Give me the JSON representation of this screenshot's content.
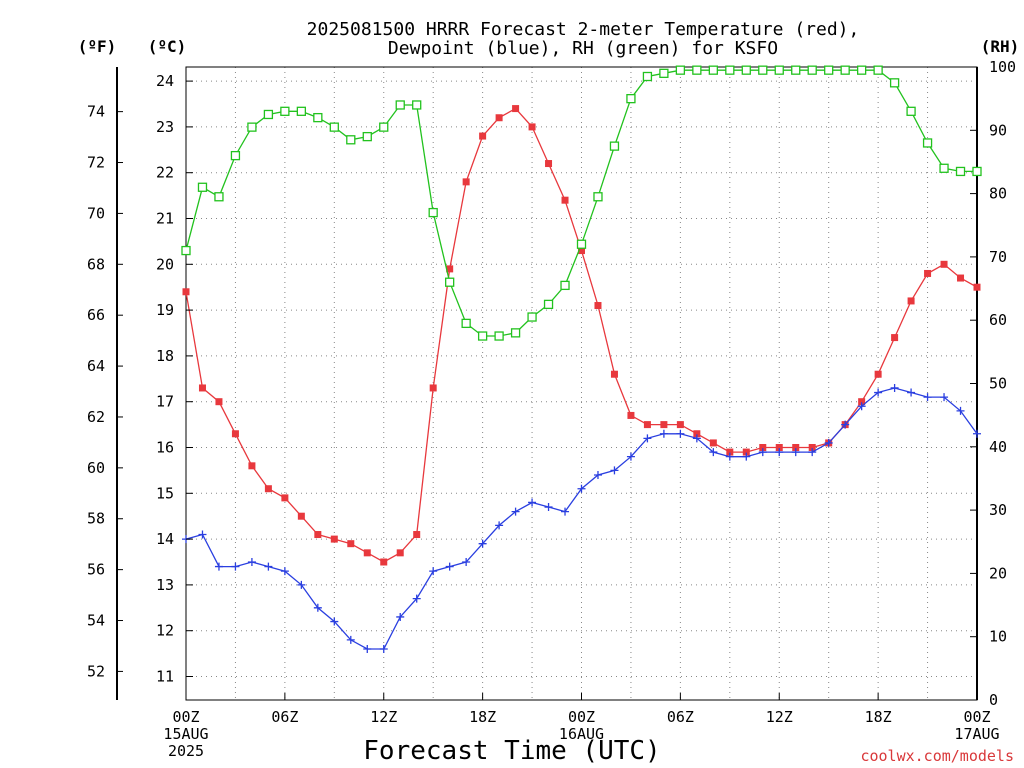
{
  "chart_data": {
    "type": "line",
    "title_line1": "2025081500 HRRR Forecast 2-meter Temperature (red),",
    "title_line2": "Dewpoint (blue), RH (green) for KSFO",
    "xlabel": "Forecast Time (UTC)",
    "left_outer_axis_label": "(ºF)",
    "left_inner_axis_label": "(ºC)",
    "right_axis_label": "(RH)",
    "credit": "coolwx.com/models",
    "x_range_hours": [
      0,
      48
    ],
    "celsius_range": [
      10.5,
      24.3
    ],
    "fahrenheit_ticks": [
      "52",
      "54",
      "56",
      "58",
      "60",
      "62",
      "64",
      "66",
      "68",
      "70",
      "72",
      "74"
    ],
    "celsius_ticks": [
      "11",
      "12",
      "13",
      "14",
      "15",
      "16",
      "17",
      "18",
      "19",
      "20",
      "21",
      "22",
      "23",
      "24"
    ],
    "rh_range": [
      0,
      100
    ],
    "rh_ticks": [
      "0",
      "10",
      "20",
      "30",
      "40",
      "50",
      "60",
      "70",
      "80",
      "90",
      "100"
    ],
    "x_ticks": [
      {
        "hour": 0,
        "lines": [
          "00Z",
          "15AUG",
          "2025"
        ]
      },
      {
        "hour": 6,
        "lines": [
          "06Z"
        ]
      },
      {
        "hour": 12,
        "lines": [
          "12Z"
        ]
      },
      {
        "hour": 18,
        "lines": [
          "18Z"
        ]
      },
      {
        "hour": 24,
        "lines": [
          "00Z",
          "16AUG"
        ]
      },
      {
        "hour": 30,
        "lines": [
          "06Z"
        ]
      },
      {
        "hour": 36,
        "lines": [
          "12Z"
        ]
      },
      {
        "hour": 42,
        "lines": [
          "18Z"
        ]
      },
      {
        "hour": 48,
        "lines": [
          "00Z",
          "17AUG"
        ]
      }
    ],
    "grid": true,
    "series": [
      {
        "name": "Temperature",
        "unit": "C",
        "color": "#e8383d",
        "marker": "filled-square",
        "x": [
          0,
          1,
          2,
          3,
          4,
          5,
          6,
          7,
          8,
          9,
          10,
          11,
          12,
          13,
          14,
          15,
          16,
          17,
          18,
          19,
          20,
          21,
          22,
          23,
          24,
          25,
          26,
          27,
          28,
          29,
          30,
          31,
          32,
          33,
          34,
          35,
          36,
          37,
          38,
          39,
          40,
          41,
          42,
          43,
          44,
          45,
          46,
          47,
          48
        ],
        "values": [
          19.4,
          17.3,
          17.0,
          16.3,
          15.6,
          15.1,
          14.9,
          14.5,
          14.1,
          14.0,
          13.9,
          13.7,
          13.5,
          13.7,
          14.1,
          17.3,
          19.9,
          21.8,
          22.8,
          23.2,
          23.4,
          23.0,
          22.2,
          21.4,
          20.3,
          19.1,
          17.6,
          16.7,
          16.5,
          16.5,
          16.5,
          16.3,
          16.1,
          15.9,
          15.9,
          16.0,
          16.0,
          16.0,
          16.0,
          16.1,
          16.5,
          17.0,
          17.6,
          18.4,
          19.2,
          19.8,
          20.0,
          19.7,
          19.5
        ]
      },
      {
        "name": "Dewpoint",
        "unit": "C",
        "color": "#2a3fe0",
        "marker": "plus",
        "x": [
          0,
          1,
          2,
          3,
          4,
          5,
          6,
          7,
          8,
          9,
          10,
          11,
          12,
          13,
          14,
          15,
          16,
          17,
          18,
          19,
          20,
          21,
          22,
          23,
          24,
          25,
          26,
          27,
          28,
          29,
          30,
          31,
          32,
          33,
          34,
          35,
          36,
          37,
          38,
          39,
          40,
          41,
          42,
          43,
          44,
          45,
          46,
          47,
          48
        ],
        "values": [
          14.0,
          14.1,
          13.4,
          13.4,
          13.5,
          13.4,
          13.3,
          13.0,
          12.5,
          12.2,
          11.8,
          11.6,
          11.6,
          12.3,
          12.7,
          13.3,
          13.4,
          13.5,
          13.9,
          14.3,
          14.6,
          14.8,
          14.7,
          14.6,
          15.1,
          15.4,
          15.5,
          15.8,
          16.2,
          16.3,
          16.3,
          16.2,
          15.9,
          15.8,
          15.8,
          15.9,
          15.9,
          15.9,
          15.9,
          16.1,
          16.5,
          16.9,
          17.2,
          17.3,
          17.2,
          17.1,
          17.1,
          16.8,
          16.3
        ]
      },
      {
        "name": "RH",
        "unit": "%",
        "color": "#22c21e",
        "marker": "open-square",
        "x": [
          0,
          1,
          2,
          3,
          4,
          5,
          6,
          7,
          8,
          9,
          10,
          11,
          12,
          13,
          14,
          15,
          16,
          17,
          18,
          19,
          20,
          21,
          22,
          23,
          24,
          25,
          26,
          27,
          28,
          29,
          30,
          31,
          32,
          33,
          34,
          35,
          36,
          37,
          38,
          39,
          40,
          41,
          42,
          43,
          44,
          45,
          46,
          47,
          48
        ],
        "values": [
          71,
          81,
          79.5,
          86,
          90.5,
          92.5,
          93,
          93,
          92,
          90.5,
          88.5,
          89,
          90.5,
          94,
          94,
          77,
          66,
          59.5,
          57.5,
          57.5,
          58,
          60.5,
          62.5,
          65.5,
          72,
          79.5,
          87.5,
          95,
          98.5,
          99,
          99.5,
          99.5,
          99.5,
          99.5,
          99.5,
          99.5,
          99.5,
          99.5,
          99.5,
          99.5,
          99.5,
          99.5,
          99.5,
          97.5,
          93,
          88,
          84,
          83.5,
          83.5
        ]
      }
    ]
  }
}
